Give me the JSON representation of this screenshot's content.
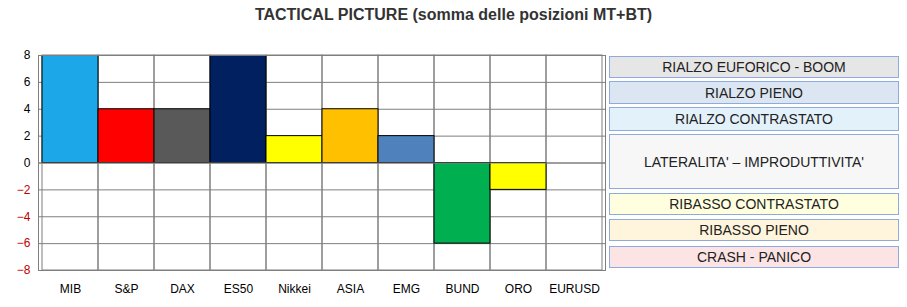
{
  "chart_data": {
    "type": "bar",
    "title": "TACTICAL PICTURE (somma delle posizioni MT+BT)",
    "categories": [
      "MIB",
      "S&P",
      "DAX",
      "ES50",
      "Nikkei",
      "ASIA",
      "EMG",
      "BUND",
      "ORO",
      "EURUSD"
    ],
    "values": [
      8,
      4,
      4,
      8,
      2,
      4,
      2,
      -6,
      -2,
      0
    ],
    "colors": [
      "#1ca8e8",
      "#ff0000",
      "#595959",
      "#002060",
      "#ffff00",
      "#ffc000",
      "#4f81bd",
      "#00b050",
      "#ffff00",
      "#ffffff"
    ],
    "ylim": [
      -8,
      8
    ],
    "yticks": [
      -8,
      -6,
      -4,
      -2,
      0,
      2,
      4,
      6,
      8
    ],
    "grid": true,
    "annotations": [
      {
        "text": "RIALZO EUFORICO - BOOM",
        "color": "#e7e6e6"
      },
      {
        "text": "RIALZO PIENO",
        "color": "#dce6f2"
      },
      {
        "text": "RIALZO CONTRASTATO",
        "color": "#e3f1fb"
      },
      {
        "text": "LATERALITA' – IMPRODUTTIVITA'",
        "color": "#f7f7f7"
      },
      {
        "text": "RIBASSO CONTRASTATO",
        "color": "#ffffe0"
      },
      {
        "text": "RIBASSO PIENO",
        "color": "#fff5dc"
      },
      {
        "text": "CRASH - PANICO",
        "color": "#fde4e4"
      }
    ]
  }
}
